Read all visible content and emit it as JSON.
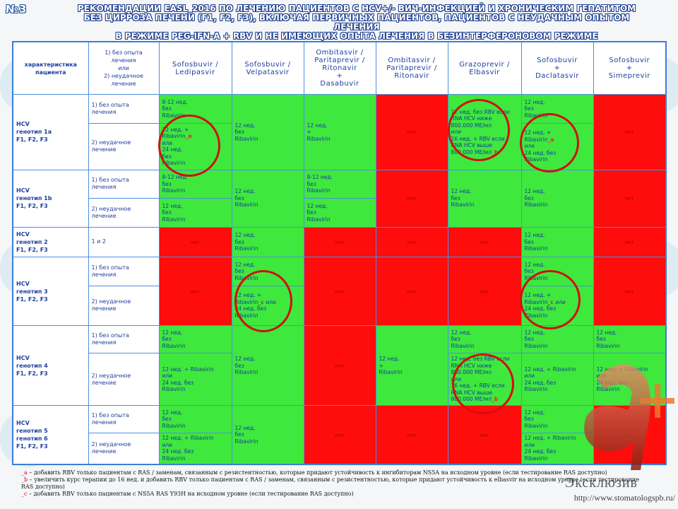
{
  "badge": "№3",
  "title": {
    "line1": "РЕКОМЕНДАЦИИ EASL_2016 ПО ЛЕЧЕНИЮ ПАЦИЕНТОВ С HCV+/- ВИЧ-ИНФЕКЦИЕЙ И ХРОНИЧЕСКИМ ГЕПАТИТОМ",
    "line2": "БЕЗ ЦИРРОЗА ПЕЧЕНИ (F1, F2, F3), ВКЛЮЧАЯ ПЕРВИЧНЫХ ПАЦИЕНТОВ, ПАЦИЕНТОВ С НЕУДАЧНЫМ ОПЫТОМ ЛЕЧЕНИЯ",
    "line3": "В РЕЖИМЕ PEG-IFN-A + RBV И НЕ ИМЕЮЩИХ ОПЫТА ЛЕЧЕНИЯ В БЕЗИНТЕРФЕРОНОВОМ РЕЖИМЕ"
  },
  "header": {
    "c0": "характеристика пациента",
    "c1_l1": "1) без опыта",
    "c1_l2": "лечения",
    "c1_l3": "или",
    "c1_l4": "2) неудачное",
    "c1_l5": "лечение",
    "d1_l1": "Sofosbuvir /",
    "d1_l2": "Ledipasvir",
    "d2_l1": "Sofosbuvir /",
    "d2_l2": "Velpatasvir",
    "d3_l1": "Ombitasvir /",
    "d3_l2": "Paritaprevir /",
    "d3_l3": "Ritonavir",
    "d3_l4": "+",
    "d3_l5": "Dasabuvir",
    "d4_l1": "Ombitasvir /",
    "d4_l2": "Paritaprevir /",
    "d4_l3": "Ritonavir",
    "d5_l1": "Grazoprevir /",
    "d5_l2": "Elbasvir",
    "d6_l1": "Sofosbuvir",
    "d6_l2": "+",
    "d6_l3": "Daclatasvir",
    "d7_l1": "Sofosbuvir",
    "d7_l2": "+",
    "d7_l3": "Simeprevir"
  },
  "genotypes": {
    "g1a": [
      "HCV",
      "генотип 1a",
      "F1, F2, F3"
    ],
    "g1b": [
      "HCV",
      "генотип 1b",
      "F1, F2, F3"
    ],
    "g2": [
      "HCV",
      "генотип 2",
      "F1, F2, F3"
    ],
    "g3": [
      "HCV",
      "генотип 3",
      "F1, F2, F3"
    ],
    "g4": [
      "HCV",
      "генотип 4",
      "F1, F2, F3"
    ],
    "g56": [
      "HCV",
      "генотип 5",
      "генотип 6",
      "F1, F2, F3"
    ]
  },
  "lines": {
    "naive": [
      "1) без опыта",
      "лечения"
    ],
    "failed": [
      "2) неудачное",
      "лечение"
    ],
    "both": "1 и 2"
  },
  "cells": {
    "none": "нет",
    "w812_no": [
      "8-12 нед.",
      "без",
      "Ribavirin"
    ],
    "w12_no": [
      "12 нед.",
      "без",
      "Ribavirin"
    ],
    "w12_plus": [
      "12 нед.",
      "+",
      "Ribavirin"
    ],
    "w12r_or_24": [
      "12 нед. +",
      "Ribavirin",
      "или",
      "24 нед.",
      "без",
      "Ribavirin"
    ],
    "w12r_or_24b": [
      "12 нед. + Ribavirin",
      "или",
      "24 нед. без",
      "Ribavirin"
    ],
    "w12r_or_24c": [
      "12 нед. +",
      "Ribavirin",
      "или",
      "24 нед. без",
      "Ribavirin"
    ],
    "gz_1a": [
      "12 нед. без RBV если",
      "RNA HCV ниже",
      "800.000 МЕ/мл",
      "или",
      "16 нед. + RBV если",
      "RNA HCV выше",
      "800.000 МЕ/мл"
    ],
    "gz_4": [
      "12 нед. без RBV если",
      "RNA HCV ниже",
      "800.000 МЕ/мл",
      "или",
      "16 нед. + RBV если",
      "RNA HCV выше",
      "800.000 МЕ/мл"
    ],
    "mark_a": "a",
    "mark_b": "b",
    "mark_c": "c"
  },
  "footnotes": {
    "a_mark": "_a",
    "a_text": " – добавить RBV только пациентам с RAS / заменам, связанным с резистентностью, которые придают устойчивость к ингибиторам NS5A на исходном уровне (если тестирование RAS доступно)",
    "b_mark": "_b",
    "b_text": " – увеличить курс терапии до 16 нед. и добавить RBV только пациентам с RAS / заменам, связанным с резистентностью, которые придают устойчивость к elbasvir на исходном уровне (если тестирование RAS доступно)",
    "c_mark": "_c",
    "c_text": " – добавить RBV только пациентам с NS5A RAS Y93H на исходном уровне (если тестирование RAS доступно)"
  },
  "brand": {
    "name": "Эксклюзив",
    "url": "http://www.stomatologspb.ru/"
  },
  "colors": {
    "recommended": "#3fe83d",
    "not_recommended": "#ff0d0d",
    "border": "#4d8fe0",
    "text": "#1c3f9e",
    "circle": "#d01010"
  }
}
